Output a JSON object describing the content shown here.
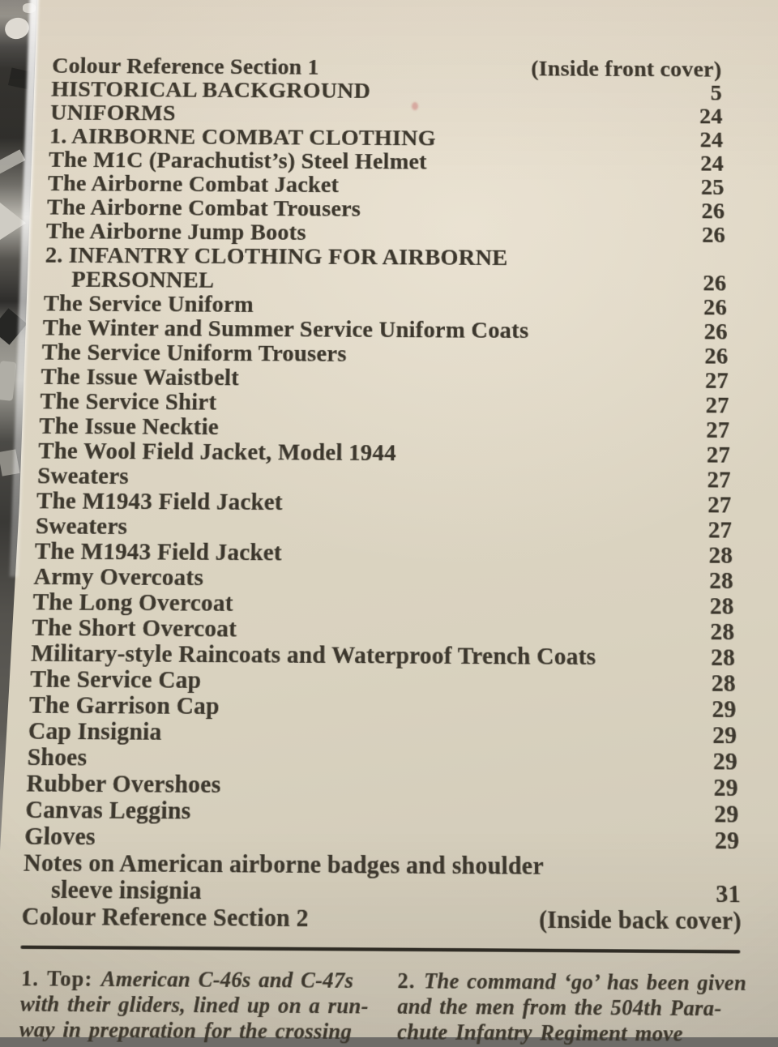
{
  "colors": {
    "paper": "#dcd4c2",
    "ink": "#3c372d",
    "rule": "#2e2b25"
  },
  "toc": {
    "entries": [
      {
        "label": "Colour Reference Section 1",
        "page": "(Inside front cover)"
      },
      {
        "label": "HISTORICAL BACKGROUND",
        "page": "5"
      },
      {
        "label": "UNIFORMS",
        "page": "24"
      },
      {
        "label": "1. AIRBORNE COMBAT CLOTHING",
        "page": "24"
      },
      {
        "label": "The M1C (Parachutist’s) Steel Helmet",
        "page": "24"
      },
      {
        "label": "The Airborne Combat Jacket",
        "page": "25"
      },
      {
        "label": "The Airborne Combat Trousers",
        "page": "26"
      },
      {
        "label": "The Airborne Jump Boots",
        "page": "26"
      },
      {
        "label": "2. INFANTRY CLOTHING FOR AIRBORNE",
        "page": ""
      },
      {
        "label": "PERSONNEL",
        "page": "26",
        "indent": true
      },
      {
        "label": "The Service Uniform",
        "page": "26"
      },
      {
        "label": "The Winter and Summer Service Uniform Coats",
        "page": "26"
      },
      {
        "label": "The Service Uniform Trousers",
        "page": "26"
      },
      {
        "label": "The Issue Waistbelt",
        "page": "27"
      },
      {
        "label": "The Service Shirt",
        "page": "27"
      },
      {
        "label": "The Issue Necktie",
        "page": "27"
      },
      {
        "label": "The Wool Field Jacket, Model 1944",
        "page": "27"
      },
      {
        "label": "Sweaters",
        "page": "27"
      },
      {
        "label": "The M1943 Field Jacket",
        "page": "27"
      },
      {
        "label": "Sweaters",
        "page": "27"
      },
      {
        "label": "The M1943 Field Jacket",
        "page": "28"
      },
      {
        "label": "Army Overcoats",
        "page": "28"
      },
      {
        "label": "The Long Overcoat",
        "page": "28"
      },
      {
        "label": "The Short Overcoat",
        "page": "28"
      },
      {
        "label": "Military-style Raincoats and Waterproof Trench Coats",
        "page": "28"
      },
      {
        "label": "The Service Cap",
        "page": "28"
      },
      {
        "label": "The Garrison Cap",
        "page": "29"
      },
      {
        "label": "Cap Insignia",
        "page": "29"
      },
      {
        "label": "Shoes",
        "page": "29"
      },
      {
        "label": "Rubber Overshoes",
        "page": "29"
      },
      {
        "label": "Canvas Leggins",
        "page": "29"
      },
      {
        "label": "Gloves",
        "page": "29"
      },
      {
        "label": "Notes on American airborne badges and shoulder",
        "page": ""
      },
      {
        "label": "sleeve insignia",
        "page": "31",
        "indent": true
      },
      {
        "label": "Colour Reference Section 2",
        "page": "(Inside back cover)"
      }
    ]
  },
  "captions": [
    {
      "lead": "1. Top:",
      "lines": [
        "American C-46s and C-47s",
        "with their gliders, lined up on a run-",
        "way in preparation for the crossing"
      ]
    },
    {
      "lead": "2.",
      "lines": [
        "The command ‘go’ has been given",
        "and the men from the 504th Para-",
        "chute Infantry Regiment move"
      ]
    }
  ]
}
